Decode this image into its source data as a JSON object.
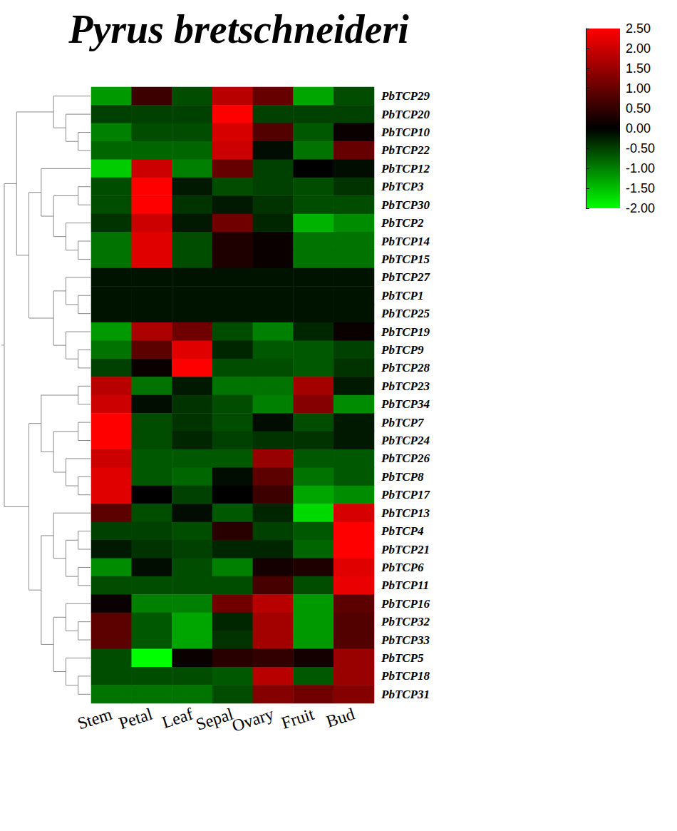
{
  "chart_data": {
    "type": "heatmap",
    "title": "Pyrus bretschneideri",
    "x_categories": [
      "Stem",
      "Petal",
      "Leaf",
      "Sepal",
      "Ovary",
      "Fruit",
      "Bud"
    ],
    "y_categories": [
      "PbTCP29",
      "PbTCP20",
      "PbTCP10",
      "PbTCP22",
      "PbTCP12",
      "PbTCP3",
      "PbTCP30",
      "PbTCP2",
      "PbTCP14",
      "PbTCP15",
      "PbTCP27",
      "PbTCP1",
      "PbTCP25",
      "PbTCP19",
      "PbTCP9",
      "PbTCP28",
      "PbTCP23",
      "PbTCP34",
      "PbTCP7",
      "PbTCP24",
      "PbTCP26",
      "PbTCP8",
      "PbTCP17",
      "PbTCP13",
      "PbTCP4",
      "PbTCP21",
      "PbTCP6",
      "PbTCP11",
      "PbTCP16",
      "PbTCP32",
      "PbTCP33",
      "PbTCP5",
      "PbTCP18",
      "PbTCP31"
    ],
    "values": [
      [
        -1.2,
        0.6,
        -0.6,
        1.8,
        1.0,
        -1.3,
        -0.6
      ],
      [
        -0.5,
        -0.5,
        -0.5,
        2.5,
        -0.5,
        -0.5,
        -0.5
      ],
      [
        -1.0,
        -0.6,
        -0.6,
        2.1,
        0.8,
        -0.7,
        0.1
      ],
      [
        -0.8,
        -0.8,
        -0.8,
        2.0,
        -0.1,
        -0.9,
        1.0
      ],
      [
        -1.6,
        2.0,
        -1.0,
        1.0,
        -0.5,
        0.0,
        -0.1
      ],
      [
        -0.6,
        2.5,
        -0.2,
        -0.6,
        -0.5,
        -0.6,
        -0.4
      ],
      [
        -0.6,
        2.5,
        -0.4,
        -0.2,
        -0.4,
        -0.6,
        -0.6
      ],
      [
        -0.4,
        2.0,
        -0.2,
        1.1,
        -0.3,
        -1.4,
        -1.1
      ],
      [
        -0.9,
        2.2,
        -0.6,
        0.3,
        0.1,
        -0.9,
        -0.9
      ],
      [
        -0.9,
        2.2,
        -0.6,
        0.3,
        0.1,
        -0.9,
        -0.9
      ],
      [
        -0.15,
        -0.15,
        -0.15,
        -0.15,
        -0.15,
        -0.15,
        -0.15
      ],
      [
        -0.15,
        -0.15,
        -0.15,
        -0.15,
        -0.15,
        -0.15,
        -0.15
      ],
      [
        -0.15,
        -0.15,
        -0.15,
        -0.15,
        -0.15,
        -0.15,
        -0.15
      ],
      [
        -1.2,
        1.7,
        1.1,
        -0.6,
        -1.0,
        -0.3,
        0.1
      ],
      [
        -0.9,
        0.9,
        2.2,
        -0.3,
        -0.7,
        -0.7,
        -0.5
      ],
      [
        -0.5,
        0.1,
        2.5,
        -0.6,
        -0.6,
        -0.7,
        -0.4
      ],
      [
        1.8,
        -0.9,
        -0.2,
        -0.9,
        -0.9,
        1.6,
        -0.2
      ],
      [
        2.0,
        -0.1,
        -0.4,
        -0.6,
        -1.0,
        1.3,
        -1.1
      ],
      [
        2.5,
        -0.6,
        -0.4,
        -0.6,
        -0.1,
        -0.6,
        -0.2
      ],
      [
        2.5,
        -0.6,
        -0.3,
        -0.5,
        -0.4,
        -0.4,
        -0.2
      ],
      [
        2.0,
        -0.7,
        -0.7,
        -0.7,
        1.5,
        -0.7,
        -0.7
      ],
      [
        2.2,
        -0.7,
        -0.8,
        -0.1,
        0.9,
        -0.9,
        -0.7
      ],
      [
        2.2,
        0.0,
        -0.5,
        0.0,
        0.6,
        -1.3,
        -1.1
      ],
      [
        0.9,
        -0.6,
        -0.1,
        -0.7,
        -0.3,
        -1.7,
        2.1
      ],
      [
        -0.5,
        -0.5,
        -0.6,
        0.4,
        -0.5,
        -0.7,
        2.5
      ],
      [
        -0.2,
        -0.4,
        -0.5,
        -0.3,
        -0.3,
        -0.8,
        2.5
      ],
      [
        -1.1,
        -0.1,
        -0.6,
        -1.0,
        0.2,
        0.3,
        2.2
      ],
      [
        -0.6,
        -0.6,
        -0.6,
        -0.6,
        0.7,
        -0.6,
        2.3
      ],
      [
        0.1,
        -1.0,
        -1.0,
        1.1,
        1.8,
        -1.2,
        0.9
      ],
      [
        0.9,
        -0.7,
        -1.3,
        -0.3,
        1.6,
        -1.2,
        0.8
      ],
      [
        0.9,
        -0.7,
        -1.3,
        -0.4,
        1.6,
        -1.2,
        0.8
      ],
      [
        -0.6,
        -2.0,
        0.1,
        0.4,
        0.5,
        0.2,
        1.5
      ],
      [
        -0.6,
        -0.6,
        -0.6,
        -0.7,
        1.8,
        -0.7,
        1.5
      ],
      [
        -0.9,
        -0.9,
        -0.9,
        -0.6,
        1.3,
        1.1,
        1.3
      ]
    ],
    "colorbar": {
      "range": [
        -2,
        2.5
      ],
      "ticks": [
        {
          "value": 2.5,
          "label": "2.50"
        },
        {
          "value": 2,
          "label": "2.00"
        },
        {
          "value": 1.5,
          "label": "1.50"
        },
        {
          "value": 1,
          "label": "1.00"
        },
        {
          "value": 0.5,
          "label": "0.50"
        },
        {
          "value": 0,
          "label": "0.00"
        },
        {
          "value": -0.5,
          "label": "-0.50"
        },
        {
          "value": -1,
          "label": "-1.00"
        },
        {
          "value": -1.5,
          "label": "-1.50"
        },
        {
          "value": -2,
          "label": "-2.00"
        }
      ],
      "colors": [
        "#00ff00",
        "#000000",
        "#ff0000"
      ]
    },
    "dendrogram": [
      [
        [
          "PbTCP29",
          [
            "PbTCP20",
            [
              "PbTCP10",
              "PbTCP22"
            ]
          ]
        ],
        [
          [
            "PbTCP12",
            [
              [
                "PbTCP3",
                "PbTCP30"
              ],
              [
                "PbTCP2",
                [
                  "PbTCP14",
                  "PbTCP15"
                ]
              ]
            ]
          ],
          [
            [
              "PbTCP27",
              [
                "PbTCP1",
                "PbTCP25"
              ]
            ],
            [
              "PbTCP19",
              [
                "PbTCP9",
                "PbTCP28"
              ]
            ]
          ]
        ]
      ],
      [
        [
          [
            "PbTCP23",
            "PbTCP34"
          ],
          [
            [
              "PbTCP7",
              "PbTCP24"
            ],
            [
              "PbTCP26",
              [
                "PbTCP8",
                "PbTCP17"
              ]
            ]
          ]
        ],
        [
          [
            "PbTCP13",
            [
              [
                "PbTCP4",
                "PbTCP21"
              ],
              [
                "PbTCP6",
                "PbTCP11"
              ]
            ]
          ],
          [
            [
              "PbTCP16",
              [
                "PbTCP32",
                "PbTCP33"
              ]
            ],
            [
              "PbTCP5",
              [
                "PbTCP18",
                "PbTCP31"
              ]
            ]
          ]
        ]
      ]
    ]
  }
}
